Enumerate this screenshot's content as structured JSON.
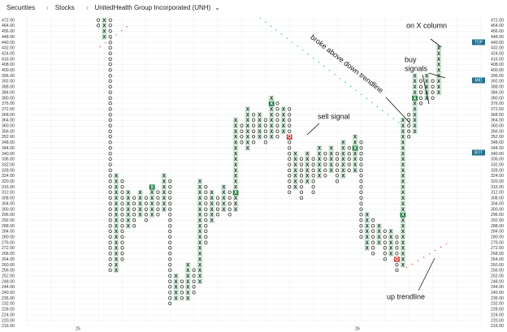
{
  "breadcrumb": [
    "Securities",
    "Stocks",
    "UnitedHealth Group Incorporated (UNH)"
  ],
  "chart_data": {
    "type": "point-and-figure",
    "x_symbol": "X",
    "o_symbol": "O",
    "x_labels": [
      "25",
      "26"
    ],
    "levels": [
      "TOP",
      "MID",
      "BOT"
    ],
    "annotations": [
      "on X column",
      "broke above down trendline",
      "buy",
      "signals",
      "sell signal",
      "up trendline"
    ],
    "yticks": [
      {
        "value": 472,
        "label": "472.00"
      },
      {
        "value": 464,
        "label": "464.00"
      },
      {
        "value": 456,
        "label": "456.00"
      },
      {
        "value": 448,
        "label": "448.00"
      },
      {
        "value": 440,
        "label": "440.00"
      },
      {
        "value": 432,
        "label": "432.00"
      },
      {
        "value": 424,
        "label": "424.00"
      },
      {
        "value": 416,
        "label": "416.00"
      },
      {
        "value": 408,
        "label": "408.00"
      },
      {
        "value": 400,
        "label": "400.00"
      },
      {
        "value": 396,
        "label": "396.00"
      },
      {
        "value": 392,
        "label": "392.00"
      },
      {
        "value": 388,
        "label": "388.00"
      },
      {
        "value": 384,
        "label": "384.00"
      },
      {
        "value": 380,
        "label": "380.00"
      },
      {
        "value": 376,
        "label": "376.00"
      },
      {
        "value": 372,
        "label": "372.00"
      },
      {
        "value": 368,
        "label": "368.00"
      },
      {
        "value": 364,
        "label": "364.00"
      },
      {
        "value": 360,
        "label": "360.00"
      },
      {
        "value": 356,
        "label": "356.00"
      },
      {
        "value": 352,
        "label": "352.00"
      },
      {
        "value": 348,
        "label": "348.00"
      },
      {
        "value": 344,
        "label": "344.00"
      },
      {
        "value": 340,
        "label": "340.00"
      },
      {
        "value": 336,
        "label": "336.00"
      },
      {
        "value": 332,
        "label": "332.00"
      },
      {
        "value": 328,
        "label": "328.00"
      },
      {
        "value": 324,
        "label": "324.00"
      },
      {
        "value": 320,
        "label": "320.00"
      },
      {
        "value": 316,
        "label": "316.00"
      },
      {
        "value": 312,
        "label": "312.00"
      },
      {
        "value": 308,
        "label": "308.00"
      },
      {
        "value": 304,
        "label": "304.00"
      },
      {
        "value": 300,
        "label": "300.00"
      },
      {
        "value": 296,
        "label": "296.00"
      },
      {
        "value": 292,
        "label": "292.00"
      },
      {
        "value": 288,
        "label": "288.00"
      },
      {
        "value": 284,
        "label": "284.00"
      },
      {
        "value": 280,
        "label": "280.00"
      },
      {
        "value": 276,
        "label": "276.00"
      },
      {
        "value": 272,
        "label": "272.00"
      },
      {
        "value": 268,
        "label": "268.00"
      },
      {
        "value": 264,
        "label": "264.00"
      },
      {
        "value": 260,
        "label": "260.00"
      },
      {
        "value": 256,
        "label": "256.00"
      },
      {
        "value": 252,
        "label": "252.00"
      },
      {
        "value": 248,
        "label": "248.00"
      },
      {
        "value": 244,
        "label": "244.00"
      },
      {
        "value": 240,
        "label": "240.00"
      },
      {
        "value": 236,
        "label": "236.00"
      },
      {
        "value": 232,
        "label": "232.00"
      },
      {
        "value": 228,
        "label": "228.00"
      },
      {
        "value": 224,
        "label": "224.00"
      },
      {
        "value": 220,
        "label": "220.00"
      },
      {
        "value": 216,
        "label": "216.00"
      }
    ],
    "columns": [
      {
        "kind": "O",
        "high": 472,
        "low": 464
      },
      {
        "kind": "X",
        "high": 472,
        "low": 448
      },
      {
        "kind": "O",
        "high": 472,
        "low": 256
      },
      {
        "kind": "X",
        "high": 324,
        "low": 256
      },
      {
        "kind": "O",
        "high": 320,
        "low": 264
      },
      {
        "kind": "X",
        "high": 312,
        "low": 288
      },
      {
        "kind": "O",
        "high": 308,
        "low": 288
      },
      {
        "kind": "X",
        "high": 312,
        "low": 296
      },
      {
        "kind": "O",
        "high": 308,
        "low": 292
      },
      {
        "kind": "X",
        "high": 316,
        "low": 296
      },
      {
        "kind": "O",
        "high": 312,
        "low": 296
      },
      {
        "kind": "X",
        "high": 324,
        "low": 300
      },
      {
        "kind": "O",
        "high": 320,
        "low": 232
      },
      {
        "kind": "X",
        "high": 252,
        "low": 236
      },
      {
        "kind": "O",
        "high": 248,
        "low": 236
      },
      {
        "kind": "X",
        "high": 260,
        "low": 236
      },
      {
        "kind": "O",
        "high": 256,
        "low": 240
      },
      {
        "kind": "X",
        "high": 320,
        "low": 248
      },
      {
        "kind": "O",
        "high": 316,
        "low": 276
      },
      {
        "kind": "X",
        "high": 312,
        "low": 292
      },
      {
        "kind": "O",
        "high": 308,
        "low": 296
      },
      {
        "kind": "X",
        "high": 316,
        "low": 300
      },
      {
        "kind": "O",
        "high": 312,
        "low": 296
      },
      {
        "kind": "X",
        "high": 364,
        "low": 300
      },
      {
        "kind": "O",
        "high": 360,
        "low": 348
      },
      {
        "kind": "X",
        "high": 372,
        "low": 344
      },
      {
        "kind": "O",
        "high": 368,
        "low": 348
      },
      {
        "kind": "X",
        "high": 368,
        "low": 352
      },
      {
        "kind": "O",
        "high": 364,
        "low": 348
      },
      {
        "kind": "X",
        "high": 380,
        "low": 352
      },
      {
        "kind": "O",
        "high": 376,
        "low": 352
      },
      {
        "kind": "X",
        "high": 372,
        "low": 356
      },
      {
        "kind": "O",
        "high": 372,
        "low": 312
      },
      {
        "kind": "X",
        "high": 340,
        "low": 316
      },
      {
        "kind": "O",
        "high": 336,
        "low": 308
      },
      {
        "kind": "X",
        "high": 340,
        "low": 320
      },
      {
        "kind": "O",
        "high": 336,
        "low": 312
      },
      {
        "kind": "X",
        "high": 344,
        "low": 324
      },
      {
        "kind": "O",
        "high": 340,
        "low": 324
      },
      {
        "kind": "X",
        "high": 344,
        "low": 328
      },
      {
        "kind": "O",
        "high": 340,
        "low": 320
      },
      {
        "kind": "X",
        "high": 348,
        "low": 324
      },
      {
        "kind": "O",
        "high": 344,
        "low": 328
      },
      {
        "kind": "X",
        "high": 352,
        "low": 328
      },
      {
        "kind": "O",
        "high": 348,
        "low": 280
      },
      {
        "kind": "X",
        "high": 296,
        "low": 272
      },
      {
        "kind": "O",
        "high": 292,
        "low": 268
      },
      {
        "kind": "X",
        "high": 288,
        "low": 276
      },
      {
        "kind": "O",
        "high": 284,
        "low": 264
      },
      {
        "kind": "X",
        "high": 284,
        "low": 268
      },
      {
        "kind": "O",
        "high": 280,
        "low": 256
      },
      {
        "kind": "X",
        "high": 364,
        "low": 260
      },
      {
        "kind": "O",
        "high": 368,
        "low": 352
      },
      {
        "kind": "X",
        "high": 396,
        "low": 356
      },
      {
        "kind": "O",
        "high": 392,
        "low": 376
      },
      {
        "kind": "X",
        "high": 396,
        "low": 380
      },
      {
        "kind": "O",
        "high": 392,
        "low": 380
      },
      {
        "kind": "X",
        "high": 432,
        "low": 384
      }
    ],
    "signals": [
      {
        "column": 9,
        "price": 316
      },
      {
        "column": 23,
        "price": 312
      },
      {
        "column": 29,
        "price": 376
      },
      {
        "column": 32,
        "price": 352
      },
      {
        "column": 43,
        "price": 344
      },
      {
        "column": 50,
        "price": 264
      },
      {
        "column": 51,
        "price": 296
      },
      {
        "column": 53,
        "price": 380
      },
      {
        "column": 57,
        "price": 412
      }
    ]
  }
}
